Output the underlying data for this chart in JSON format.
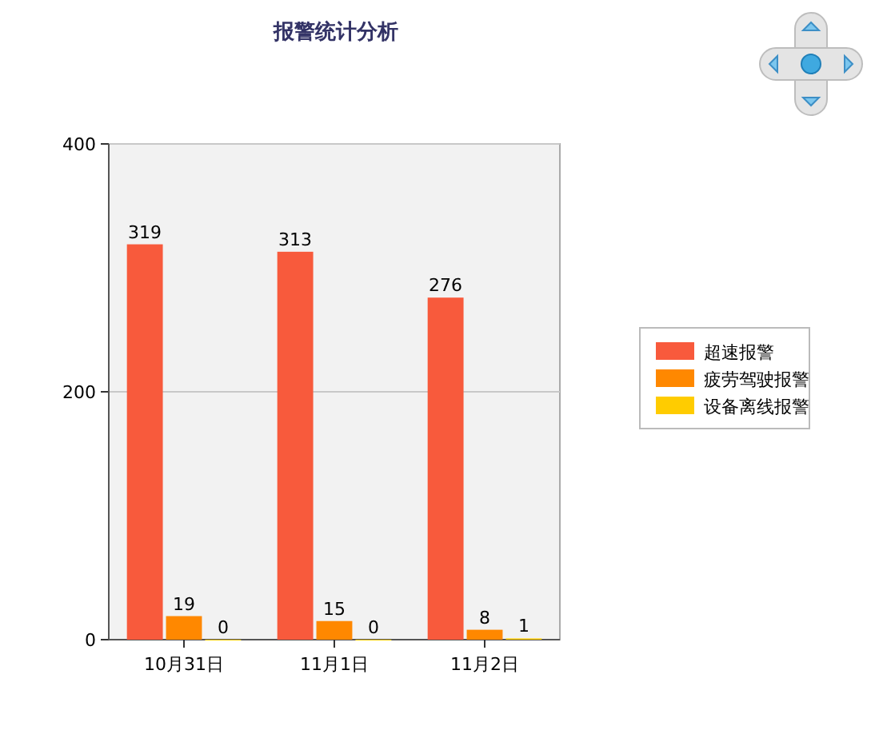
{
  "chart_data": {
    "type": "bar",
    "title": "报警统计分析",
    "categories": [
      "10月31日",
      "11月1日",
      "11月2日"
    ],
    "series": [
      {
        "name": "超速报警",
        "color": "#f85a3c",
        "values": [
          319,
          313,
          276
        ]
      },
      {
        "name": "疲劳驾驶报警",
        "color": "#ff8800",
        "values": [
          19,
          15,
          8
        ]
      },
      {
        "name": "设备离线报警",
        "color": "#ffcc00",
        "values": [
          0,
          0,
          1
        ]
      }
    ],
    "ylim": [
      0,
      400
    ],
    "yticks": [
      0,
      200,
      400
    ],
    "grid": "y",
    "legend": "right",
    "data_labels": true
  }
}
